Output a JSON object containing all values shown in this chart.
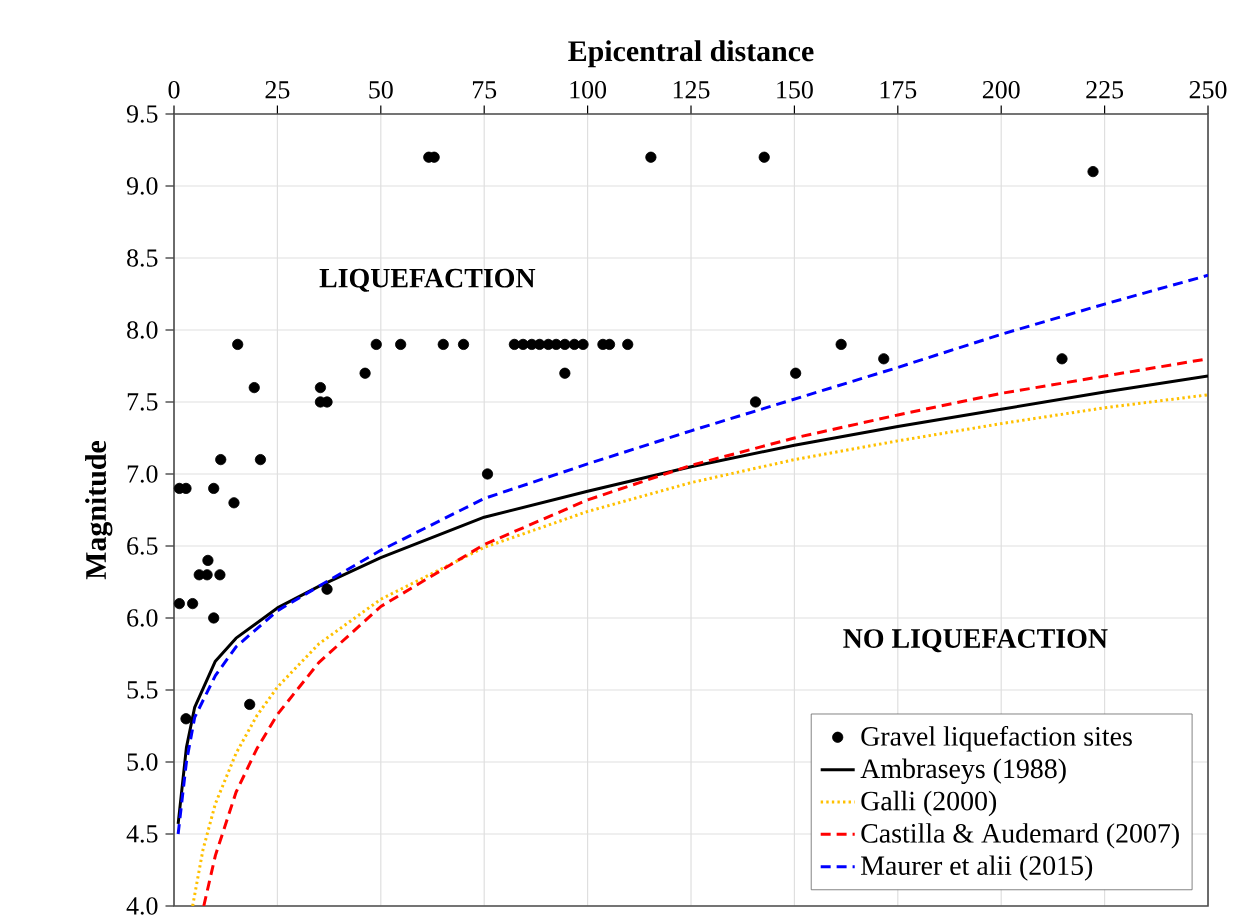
{
  "chart_data": {
    "type": "scatter",
    "xlabel": "Epicentral distance",
    "ylabel": "Magnitude",
    "xlim": [
      0,
      250
    ],
    "ylim": [
      4.0,
      9.5
    ],
    "xticks": [
      0,
      25,
      50,
      75,
      100,
      125,
      150,
      175,
      200,
      225,
      250
    ],
    "yticks": [
      {
        "value": 4.0,
        "label": "4.0"
      },
      4.5,
      {
        "value": 5.0,
        "label": "5.0"
      },
      5.5,
      {
        "value": 6.0,
        "label": "6.0"
      },
      6.5,
      {
        "value": 7.0,
        "label": "7.0"
      },
      7.5,
      {
        "value": 8.0,
        "label": "8.0"
      },
      8.5,
      {
        "value": 9.0,
        "label": "9.0"
      },
      9.5
    ],
    "grid": true,
    "legend": "bottom right",
    "annotations": [
      "LIQUEFACTION",
      "NO LIQUEFACTION"
    ],
    "series": [
      {
        "name": "Gravel liquefaction sites",
        "marker": "circle",
        "color": "#000000",
        "x": [
          61.6,
          62.9,
          15.4,
          19.4,
          35.4,
          35.4,
          37,
          46.2,
          48.9,
          54.8,
          65.1,
          70,
          11.3,
          20.9,
          1.3,
          2.9,
          9.6,
          14.5,
          75.8,
          8.2,
          6.1,
          8,
          11.1,
          1.3,
          4.5,
          9.6,
          37,
          2.9,
          18.3,
          115.3,
          142.7,
          82.3,
          84.4,
          86.5,
          88.4,
          90.5,
          92.4,
          94.5,
          96.8,
          98.9,
          103.7,
          105.3,
          109.7,
          94.5,
          140.6,
          150.3,
          161.3,
          171.6,
          214.7,
          222.2
        ],
        "values": [
          9.2,
          9.2,
          7.9,
          7.6,
          7.6,
          7.5,
          7.5,
          7.7,
          7.9,
          7.9,
          7.9,
          7.9,
          7.1,
          7.1,
          6.9,
          6.9,
          6.9,
          6.8,
          7.0,
          6.4,
          6.3,
          6.3,
          6.3,
          6.1,
          6.1,
          6.0,
          6.2,
          5.3,
          5.4,
          9.2,
          9.2,
          7.9,
          7.9,
          7.9,
          7.9,
          7.9,
          7.9,
          7.9,
          7.9,
          7.9,
          7.9,
          7.9,
          7.9,
          7.7,
          7.5,
          7.7,
          7.9,
          7.8,
          7.8,
          9.1
        ]
      },
      {
        "name": "Ambraseys (1988)",
        "type": "line",
        "marker": "none",
        "line_style": "solid",
        "color": "#000000",
        "x": [
          1,
          3,
          5,
          10,
          15,
          25,
          35,
          50,
          75,
          100,
          125,
          150,
          175,
          200,
          225,
          250
        ],
        "values": [
          4.57,
          5.1,
          5.38,
          5.7,
          5.86,
          6.07,
          6.22,
          6.42,
          6.7,
          6.88,
          7.05,
          7.2,
          7.33,
          7.45,
          7.57,
          7.68
        ]
      },
      {
        "name": "Galli (2000)",
        "type": "line",
        "marker": "none",
        "line_style": "dotted",
        "color": "#ffc000",
        "x": [
          4.5,
          7,
          10,
          15,
          20,
          25,
          35,
          50,
          75,
          100,
          125,
          150,
          175,
          200,
          225,
          250
        ],
        "values": [
          4.0,
          4.39,
          4.71,
          5.06,
          5.32,
          5.52,
          5.82,
          6.13,
          6.49,
          6.74,
          6.94,
          7.1,
          7.23,
          7.35,
          7.46,
          7.55
        ]
      },
      {
        "name": "Castilla & Audemard (2007)",
        "type": "line",
        "marker": "none",
        "line_style": "dashed",
        "color": "#ff0000",
        "x": [
          7.2,
          10,
          15,
          20,
          25,
          35,
          50,
          75,
          100,
          125,
          150,
          175,
          200,
          225,
          250
        ],
        "values": [
          4.0,
          4.35,
          4.79,
          5.09,
          5.33,
          5.69,
          6.08,
          6.51,
          6.82,
          7.06,
          7.25,
          7.41,
          7.56,
          7.68,
          7.8
        ]
      },
      {
        "name": "Maurer et alii (2015)",
        "type": "line",
        "marker": "none",
        "line_style": "dashed",
        "color": "#0000ff",
        "x": [
          1,
          3,
          5,
          10,
          15,
          25,
          35,
          50,
          75,
          100,
          125,
          150,
          175,
          200,
          225,
          250
        ],
        "values": [
          4.5,
          5.0,
          5.31,
          5.6,
          5.8,
          6.05,
          6.22,
          6.47,
          6.83,
          7.07,
          7.3,
          7.52,
          7.74,
          7.97,
          8.18,
          8.38
        ]
      }
    ]
  }
}
